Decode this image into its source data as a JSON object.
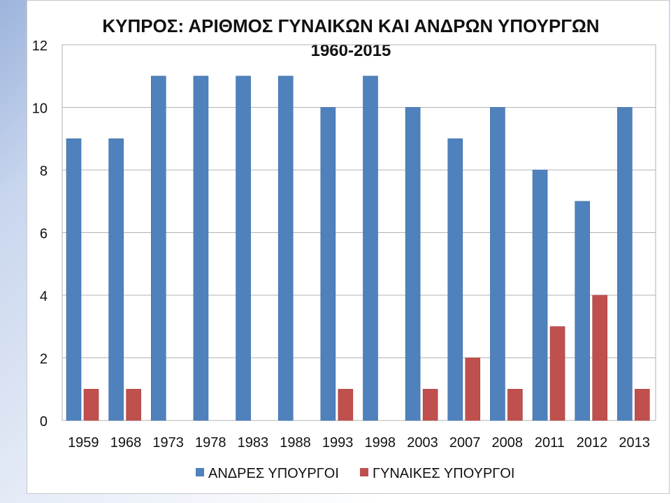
{
  "chart_data": {
    "type": "bar",
    "title": "ΚΥΠΡΟΣ: ΑΡΙΘΜΟΣ ΓΥΝΑΙΚΩΝ ΚΑΙ ΑΝΔΡΩΝ ΥΠΟΥΡΓΩΝ",
    "subtitle": "1960-2015",
    "xlabel": "",
    "ylabel": "",
    "ylim": [
      0,
      12
    ],
    "yticks": [
      0,
      2,
      4,
      6,
      8,
      10,
      12
    ],
    "grid": true,
    "legend_position": "bottom",
    "categories": [
      "1959",
      "1968",
      "1973",
      "1978",
      "1983",
      "1988",
      "1993",
      "1998",
      "2003",
      "2007",
      "2008",
      "2011",
      "2012",
      "2013"
    ],
    "series": [
      {
        "name": "ΑΝΔΡΕΣ ΥΠΟΥΡΓΟΙ",
        "color": "#4f81bd",
        "values": [
          9,
          9,
          11,
          11,
          11,
          11,
          10,
          11,
          10,
          9,
          10,
          8,
          7,
          10
        ]
      },
      {
        "name": "ΓΥΝΑΙΚΕΣ ΥΠΟΥΡΓΟΙ",
        "color": "#c0504d",
        "values": [
          1,
          1,
          0,
          0,
          0,
          0,
          1,
          0,
          1,
          2,
          1,
          3,
          4,
          1
        ]
      }
    ]
  }
}
